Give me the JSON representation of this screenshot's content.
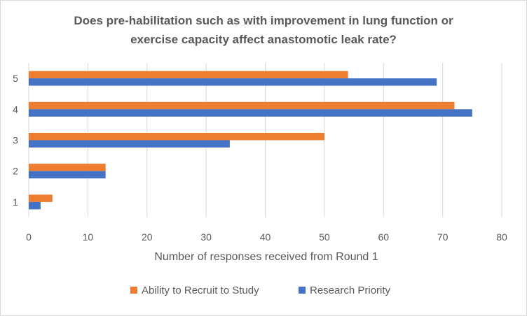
{
  "chart_data": {
    "type": "bar",
    "orientation": "horizontal",
    "title_line1": "Does pre-habilitation such as with improvement in lung function or",
    "title_line2": "exercise capacity affect anastomotic leak rate?",
    "xlabel": "Number of responses received from Round 1",
    "ylabel": "",
    "categories": [
      "1",
      "2",
      "3",
      "4",
      "5"
    ],
    "xlim": [
      0,
      80
    ],
    "xticks": [
      "0",
      "10",
      "20",
      "30",
      "40",
      "50",
      "60",
      "70",
      "80"
    ],
    "grid": "vertical",
    "legend_position": "bottom",
    "series": [
      {
        "name": "Ability to Recruit to Study",
        "color": "#ED7D31",
        "values": [
          4,
          13,
          50,
          72,
          54
        ]
      },
      {
        "name": "Research Priority",
        "color": "#4472C4",
        "values": [
          2,
          13,
          34,
          75,
          69
        ]
      }
    ]
  }
}
